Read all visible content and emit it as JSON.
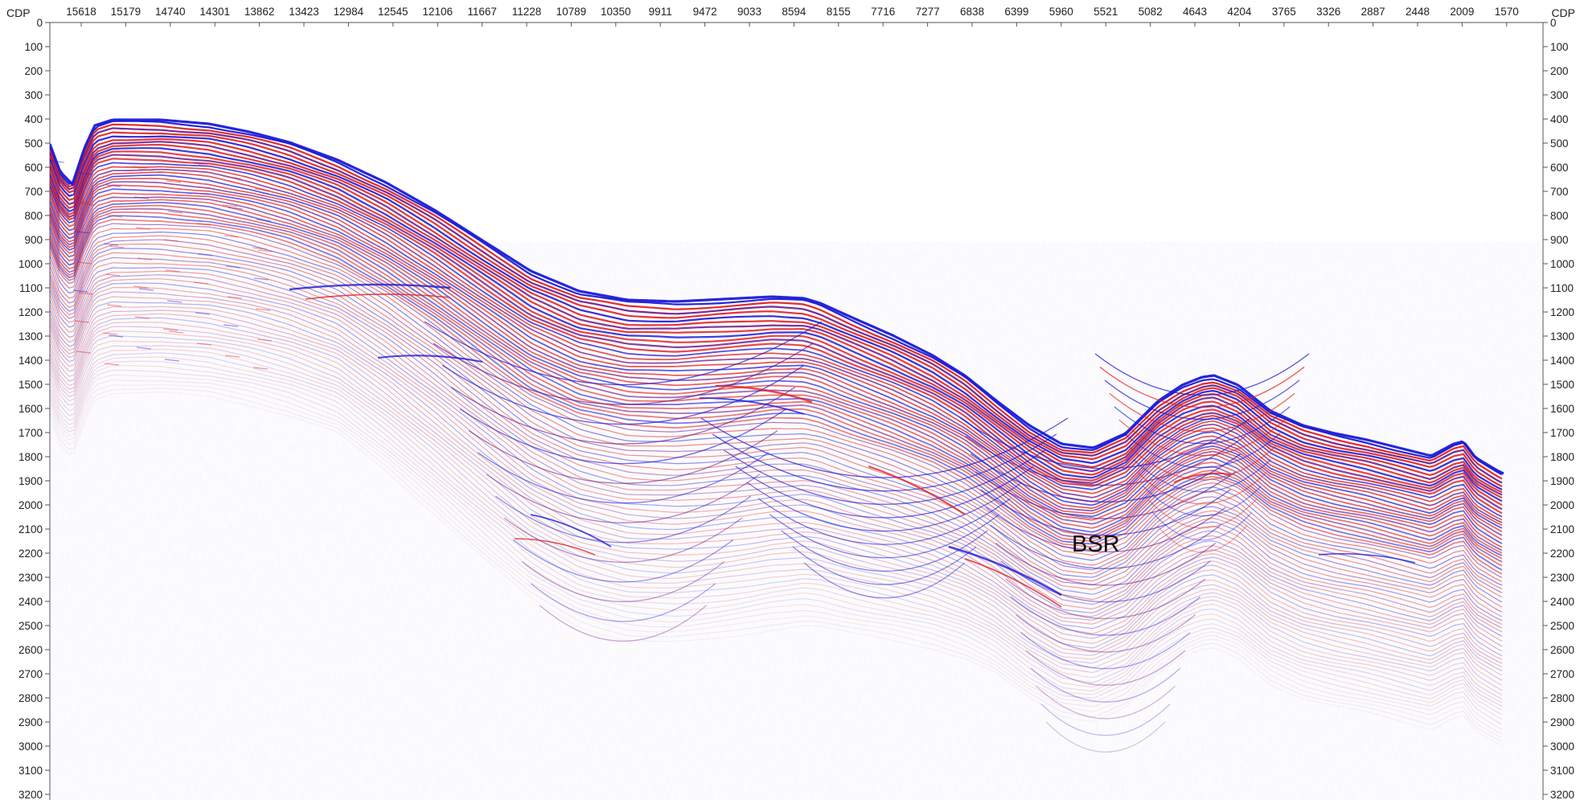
{
  "axis_label_left": "CDP",
  "axis_label_right": "CDP",
  "top_ticks": [
    "15618",
    "15179",
    "14740",
    "14301",
    "13862",
    "13423",
    "12984",
    "12545",
    "12106",
    "11667",
    "11228",
    "10789",
    "10350",
    "9911",
    "9472",
    "9033",
    "8594",
    "8155",
    "7716",
    "7277",
    "6838",
    "6399",
    "5960",
    "5521",
    "5082",
    "4643",
    "4204",
    "3765",
    "3326",
    "2887",
    "2448",
    "2009",
    "1570"
  ],
  "time_ticks": [
    "0",
    "100",
    "200",
    "300",
    "400",
    "500",
    "600",
    "700",
    "800",
    "900",
    "1000",
    "1100",
    "1200",
    "1300",
    "1400",
    "1500",
    "1600",
    "1700",
    "1800",
    "1900",
    "2000",
    "2100",
    "2200",
    "2300",
    "2400",
    "2500",
    "2600",
    "2700",
    "2800",
    "2900",
    "3000",
    "3100",
    "3200"
  ],
  "annotation": "BSR",
  "colors": {
    "positive": "#e02020",
    "negative": "#1a1ad8",
    "mixed": "#6a1a8a",
    "background": "#ffffff"
  }
}
